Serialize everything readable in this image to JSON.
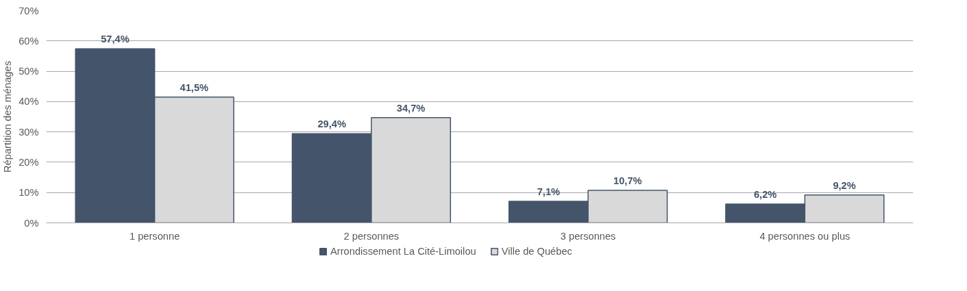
{
  "chart_data": {
    "type": "bar",
    "ylabel": "Répartition des ménages",
    "categories": [
      "1 personne",
      "2 personnes",
      "3 personnes",
      "4 personnes ou plus"
    ],
    "series": [
      {
        "name": "Arrondissement La Cité-Limoilou",
        "color": "#44546a",
        "values": [
          57.4,
          29.4,
          7.1,
          6.2
        ],
        "value_labels": [
          "57,4%",
          "29,4%",
          "7,1%",
          "6,2%"
        ]
      },
      {
        "name": "Ville de Québec",
        "color": "#d9d9d9",
        "values": [
          41.5,
          34.7,
          10.7,
          9.2
        ],
        "value_labels": [
          "41,5%",
          "34,7%",
          "10,7%",
          "9,2%"
        ]
      }
    ],
    "ylim": [
      0,
      70
    ],
    "yticks": [
      {
        "value": 0,
        "label": "0%"
      },
      {
        "value": 10,
        "label": "10%"
      },
      {
        "value": 20,
        "label": "20%"
      },
      {
        "value": 30,
        "label": "30%"
      },
      {
        "value": 40,
        "label": "40%"
      },
      {
        "value": 50,
        "label": "50%"
      },
      {
        "value": 60,
        "label": "60%"
      },
      {
        "value": 70,
        "label": "70%"
      }
    ],
    "grid": "y",
    "legend": "bottom"
  }
}
